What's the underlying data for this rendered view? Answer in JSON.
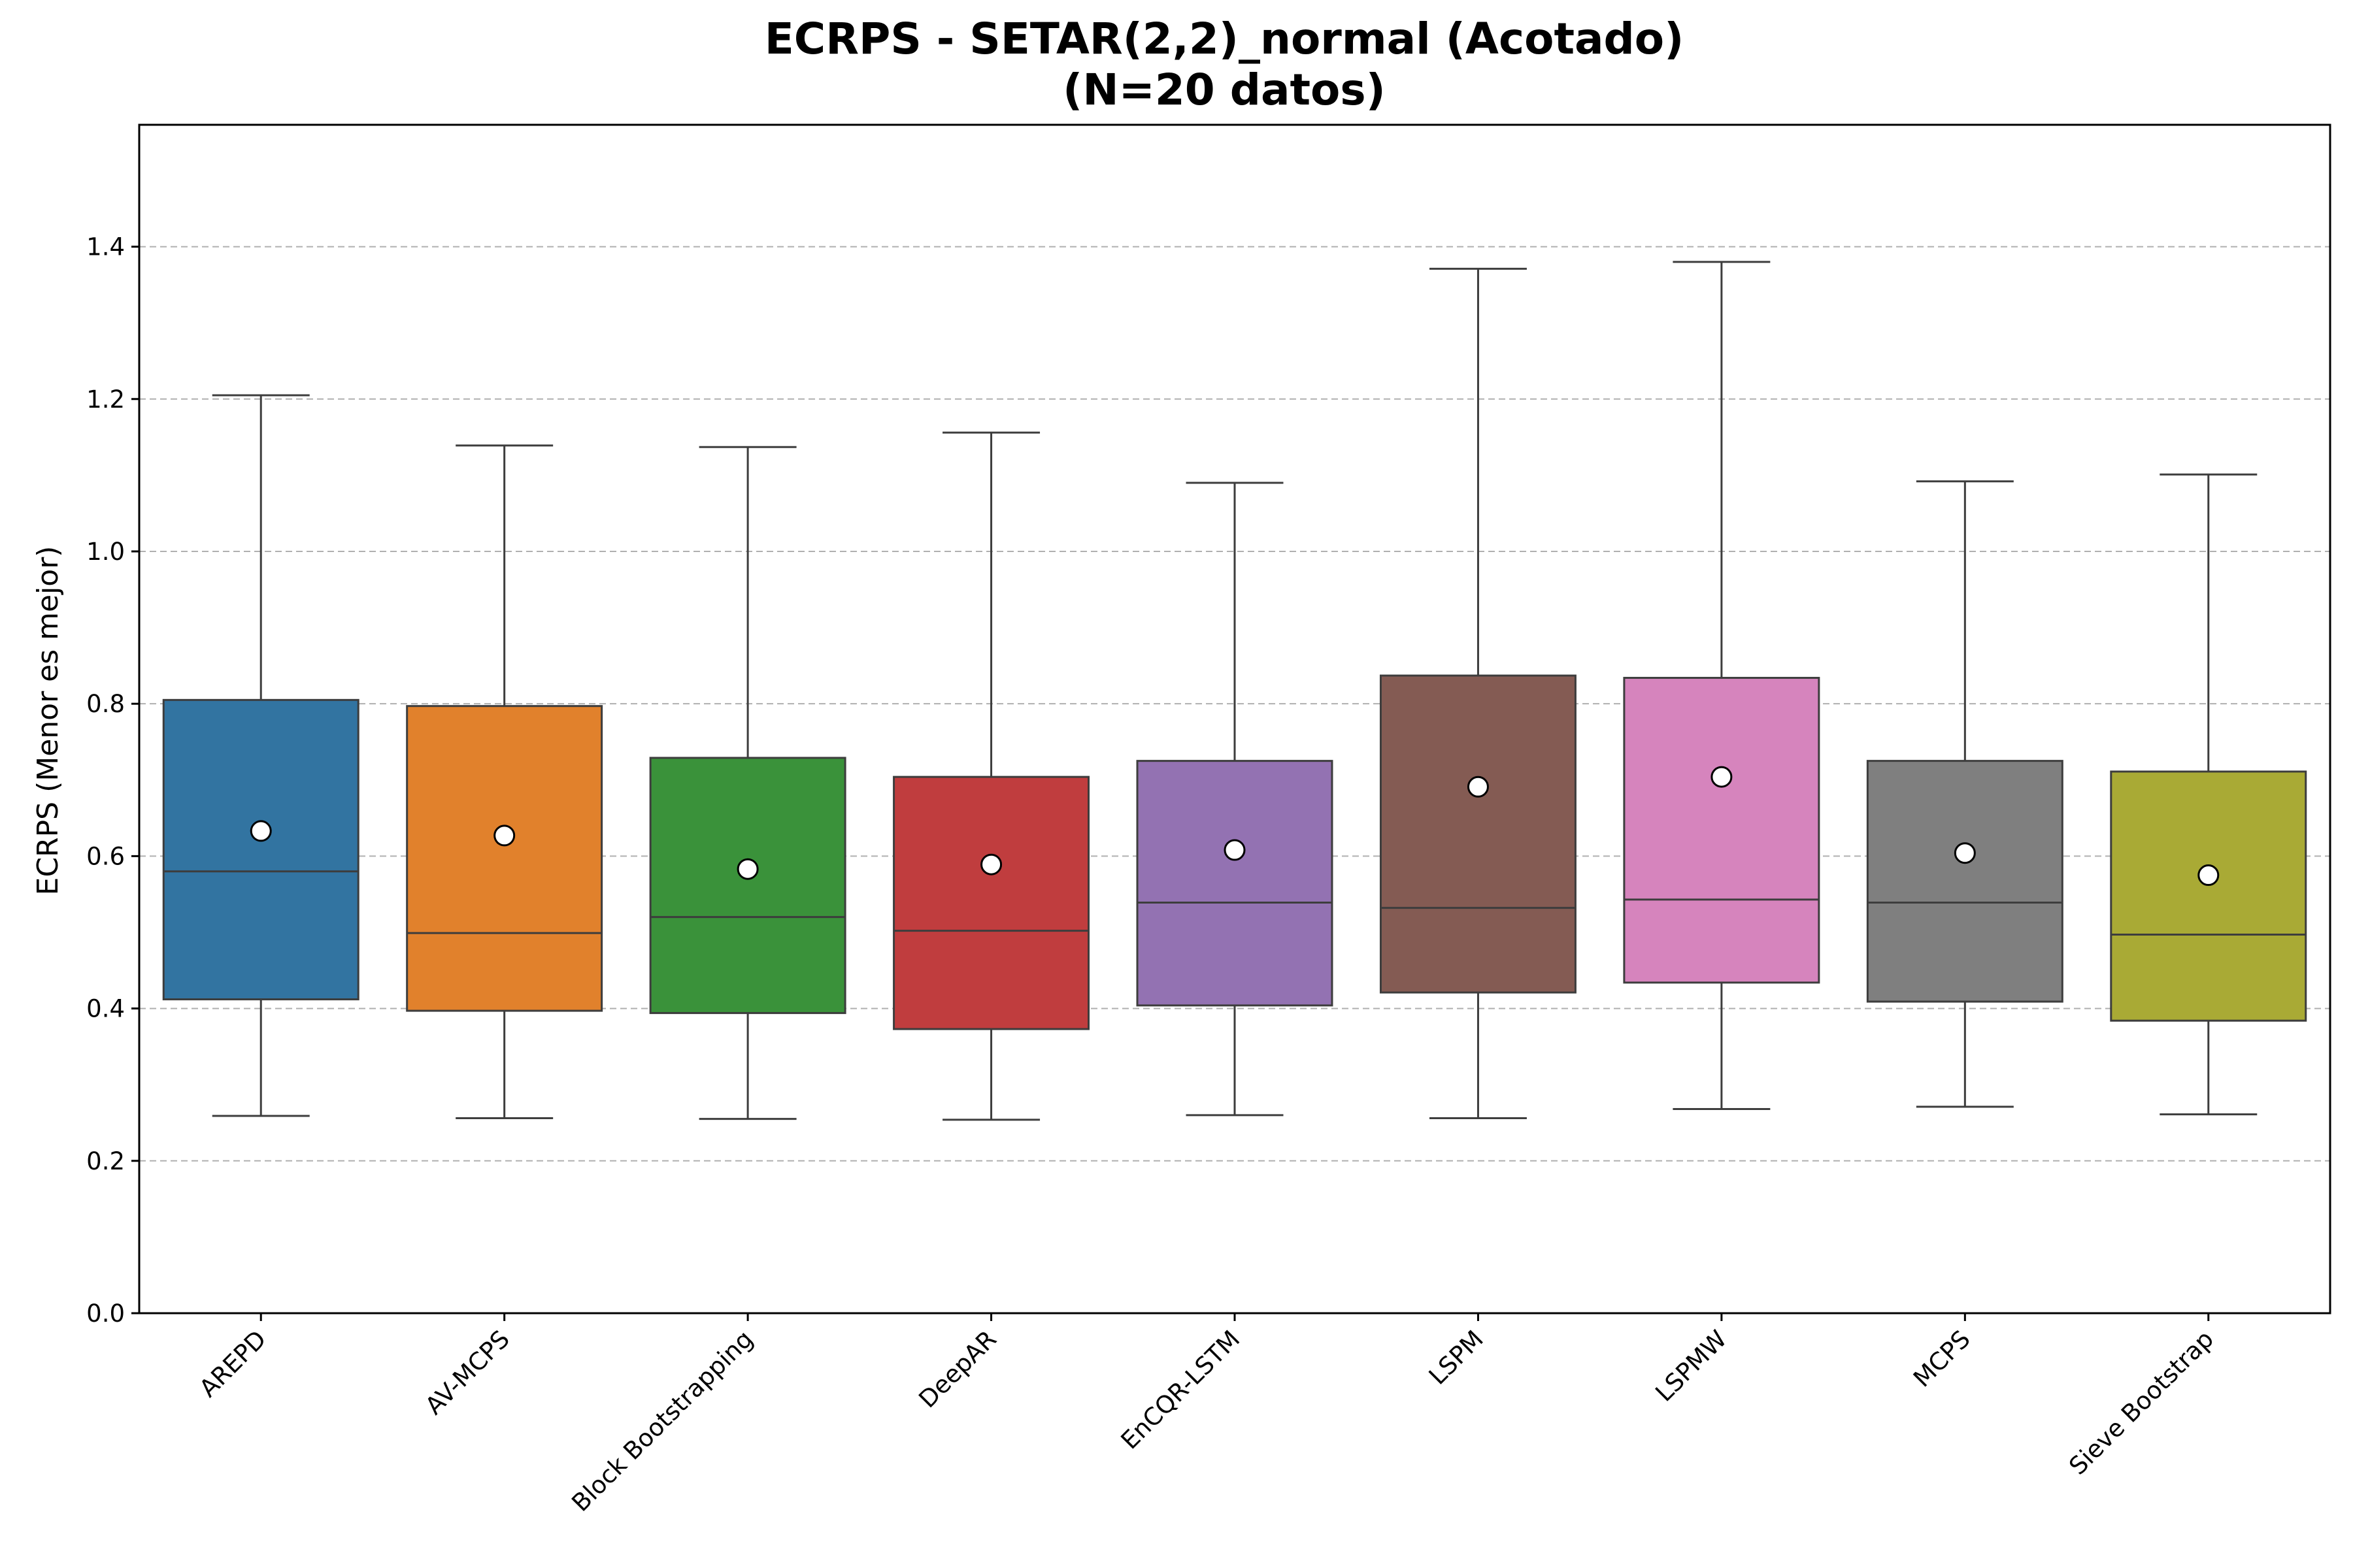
{
  "chart_data": {
    "type": "box",
    "title": "ECRPS - SETAR(2,2)_normal (Acotado)",
    "subtitle": "(N=20 datos)",
    "xlabel": "",
    "ylabel": "ECRPS (Menor es mejor)",
    "ylim": [
      0,
      1.56
    ],
    "yticks": [
      0.0,
      0.2,
      0.4,
      0.6,
      0.8,
      1.0,
      1.2,
      1.4
    ],
    "ytick_labels": [
      "0.0",
      "0.2",
      "0.4",
      "0.6",
      "0.8",
      "1.0",
      "1.2",
      "1.4"
    ],
    "grid": "horizontal dashed",
    "categories": [
      "AREPD",
      "AV-MCPS",
      "Block Bootstrapping",
      "DeepAR",
      "EnCQR-LSTM",
      "LSPM",
      "LSPMW",
      "MCPS",
      "Sieve Bootstrap"
    ],
    "series": [
      {
        "category": "AREPD",
        "whisker_low": 0.259,
        "q1": 0.412,
        "median": 0.58,
        "q3": 0.805,
        "whisker_high": 1.205,
        "mean": 0.633,
        "color": "#3274a1"
      },
      {
        "category": "AV-MCPS",
        "whisker_low": 0.256,
        "q1": 0.397,
        "median": 0.499,
        "q3": 0.797,
        "whisker_high": 1.139,
        "mean": 0.627,
        "color": "#e1812c"
      },
      {
        "category": "Block Bootstrapping",
        "whisker_low": 0.255,
        "q1": 0.394,
        "median": 0.52,
        "q3": 0.729,
        "whisker_high": 1.137,
        "mean": 0.583,
        "color": "#3a923a"
      },
      {
        "category": "DeepAR",
        "whisker_low": 0.254,
        "q1": 0.373,
        "median": 0.502,
        "q3": 0.704,
        "whisker_high": 1.156,
        "mean": 0.589,
        "color": "#c03d3e"
      },
      {
        "category": "EnCQR-LSTM",
        "whisker_low": 0.26,
        "q1": 0.404,
        "median": 0.539,
        "q3": 0.725,
        "whisker_high": 1.09,
        "mean": 0.608,
        "color": "#9372b2"
      },
      {
        "category": "LSPM",
        "whisker_low": 0.256,
        "q1": 0.421,
        "median": 0.532,
        "q3": 0.837,
        "whisker_high": 1.371,
        "mean": 0.691,
        "color": "#845b53"
      },
      {
        "category": "LSPMW",
        "whisker_low": 0.268,
        "q1": 0.434,
        "median": 0.543,
        "q3": 0.834,
        "whisker_high": 1.38,
        "mean": 0.704,
        "color": "#d684bd"
      },
      {
        "category": "MCPS",
        "whisker_low": 0.271,
        "q1": 0.409,
        "median": 0.539,
        "q3": 0.725,
        "whisker_high": 1.092,
        "mean": 0.604,
        "color": "#7f7f7f"
      },
      {
        "category": "Sieve Bootstrap",
        "whisker_low": 0.261,
        "q1": 0.384,
        "median": 0.497,
        "q3": 0.711,
        "whisker_high": 1.101,
        "mean": 0.575,
        "color": "#a9aa35"
      }
    ]
  }
}
